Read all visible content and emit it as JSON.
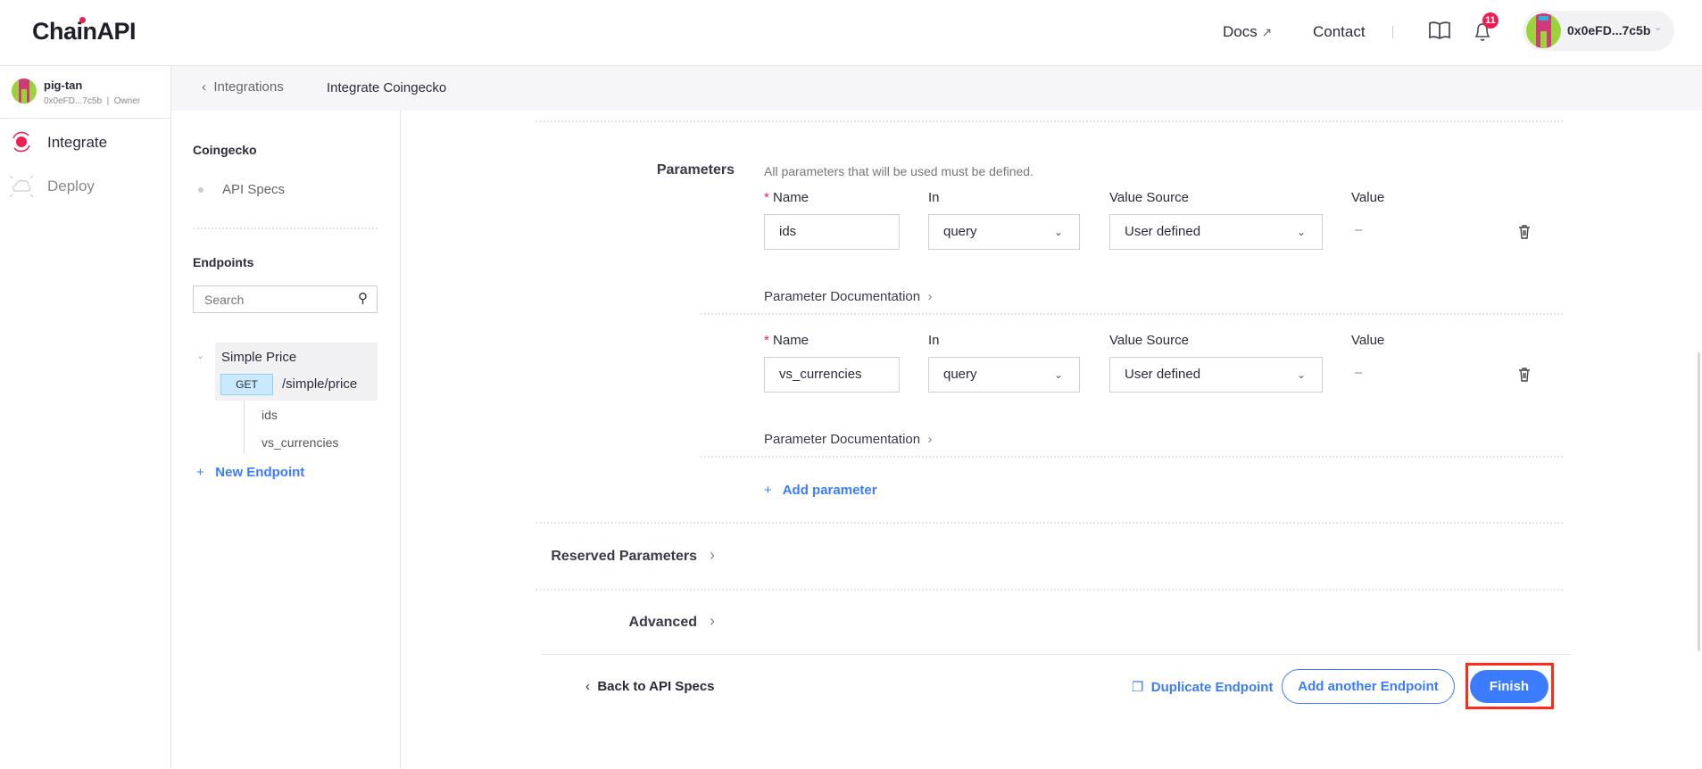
{
  "header": {
    "logo": "ChainAPI",
    "docs": "Docs",
    "contact": "Contact",
    "notifications_count": "11",
    "wallet": "0x0eFD...7c5b"
  },
  "nav": {
    "user_name": "pig-tan",
    "user_address": "0x0eFD...7c5b",
    "user_role": "Owner",
    "items": [
      {
        "label": "Integrate",
        "active": true
      },
      {
        "label": "Deploy",
        "active": false
      }
    ]
  },
  "breadcrumb": {
    "back": "Integrations",
    "current": "Integrate Coingecko"
  },
  "sidebar": {
    "api_name": "Coingecko",
    "api_specs": "API Specs",
    "endpoints_title": "Endpoints",
    "search_placeholder": "Search",
    "endpoint": {
      "name": "Simple Price",
      "method": "GET",
      "path": "/simple/price",
      "params": [
        "ids",
        "vs_currencies"
      ]
    },
    "new_endpoint": "New Endpoint"
  },
  "parameters": {
    "title": "Parameters",
    "hint": "All parameters that will be used must be defined.",
    "col_name": "Name",
    "col_in": "In",
    "col_source": "Value Source",
    "col_value": "Value",
    "doc_label": "Parameter Documentation",
    "rows": [
      {
        "name": "ids",
        "in": "query",
        "source": "User defined",
        "value": "–"
      },
      {
        "name": "vs_currencies",
        "in": "query",
        "source": "User defined",
        "value": "–"
      }
    ],
    "add": "Add parameter"
  },
  "reserved": "Reserved Parameters",
  "advanced": "Advanced",
  "footer": {
    "back": "Back to API Specs",
    "duplicate": "Duplicate Endpoint",
    "add_another": "Add another Endpoint",
    "finish": "Finish"
  },
  "colors": {
    "accent": "#3b7cff",
    "brand": "#ee1d52",
    "highlight": "#ff2a1a"
  }
}
